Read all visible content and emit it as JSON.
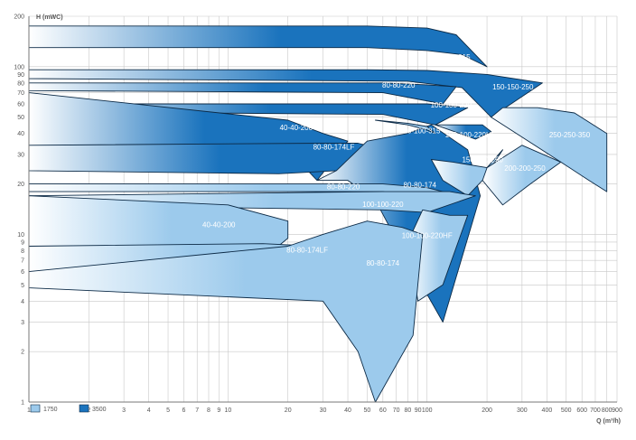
{
  "chart_data": {
    "type": "area",
    "xlabel": "Q (m³/h)",
    "ylabel": "H (mWC)",
    "xscale": "log",
    "yscale": "log",
    "xlim": [
      1,
      900
    ],
    "ylim": [
      1,
      200
    ],
    "grid": true,
    "legend_position": "bottom-left",
    "x_ticks": [
      1,
      2,
      3,
      4,
      5,
      6,
      7,
      8,
      9,
      10,
      20,
      30,
      40,
      50,
      60,
      70,
      80,
      90,
      100,
      200,
      300,
      400,
      500,
      600,
      700,
      800,
      900
    ],
    "y_ticks": [
      1,
      2,
      3,
      4,
      5,
      6,
      7,
      8,
      9,
      10,
      20,
      30,
      40,
      50,
      60,
      70,
      80,
      90,
      100,
      200
    ],
    "series": [
      {
        "name": "1750",
        "color": "#9ccaec"
      },
      {
        "name": "3500",
        "color": "#1a73bd"
      }
    ],
    "regions": [
      {
        "label": "100-100-315",
        "speed": "3500",
        "points": [
          [
            1,
            175
          ],
          [
            1,
            130
          ],
          [
            50,
            130
          ],
          [
            100,
            125
          ],
          [
            150,
            118
          ],
          [
            200,
            100
          ],
          [
            140,
            155
          ],
          [
            100,
            170
          ],
          [
            50,
            175
          ]
        ],
        "label_at": [
          130,
          110
        ]
      },
      {
        "label": "150-150-250",
        "speed": "3500",
        "points": [
          [
            1,
            96
          ],
          [
            1,
            85
          ],
          [
            80,
            82
          ],
          [
            150,
            75
          ],
          [
            210,
            50
          ],
          [
            380,
            80
          ],
          [
            200,
            90
          ],
          [
            100,
            95
          ],
          [
            50,
            96
          ]
        ],
        "label_at": [
          270,
          73
        ]
      },
      {
        "label": "80-80-220",
        "speed": "3500",
        "points": [
          [
            1,
            80
          ],
          [
            1,
            72
          ],
          [
            60,
            70
          ],
          [
            120,
            60
          ],
          [
            140,
            76
          ],
          [
            100,
            78
          ],
          [
            60,
            80
          ]
        ],
        "label_at": [
          72,
          75
        ]
      },
      {
        "label": "100-100-220",
        "speed": "3500",
        "points": [
          [
            1,
            60
          ],
          [
            1,
            54
          ],
          [
            60,
            52
          ],
          [
            110,
            45
          ],
          [
            160,
            57
          ],
          [
            100,
            60
          ]
        ],
        "label_at": [
          132,
          57
        ]
      },
      {
        "label": "100-100-220HF",
        "speed": "3500",
        "points": [
          [
            110,
            45
          ],
          [
            130,
            42
          ],
          [
            175,
            37
          ],
          [
            210,
            41
          ],
          [
            190,
            45
          ]
        ],
        "label_at": [
          165,
          38
        ]
      },
      {
        "label": "40-40-200",
        "speed": "3500",
        "points": [
          [
            1,
            70
          ],
          [
            1,
            34
          ],
          [
            20,
            32
          ],
          [
            28,
            21
          ],
          [
            40,
            36
          ],
          [
            30,
            40
          ],
          [
            20,
            48
          ]
        ],
        "label_at": [
          22,
          42
        ]
      },
      {
        "label": "80-80-174LF",
        "speed": "3500",
        "points": [
          [
            1,
            34
          ],
          [
            1,
            24
          ],
          [
            18,
            23
          ],
          [
            35,
            24
          ],
          [
            55,
            33
          ],
          [
            45,
            35
          ],
          [
            30,
            35
          ]
        ],
        "label_at": [
          34,
          32
        ]
      },
      {
        "label": "80-80-174",
        "speed": "3500",
        "points": [
          [
            28,
            21
          ],
          [
            35,
            24
          ],
          [
            50,
            36
          ],
          [
            80,
            40
          ],
          [
            105,
            45
          ],
          [
            160,
            32
          ],
          [
            185,
            17
          ],
          [
            120,
            3
          ],
          [
            75,
            8
          ],
          [
            55,
            16
          ],
          [
            40,
            21
          ]
        ],
        "label_at": [
          92,
          19
        ]
      },
      {
        "label": "100-100-315",
        "speed": "1750",
        "points": [
          [
            55,
            48
          ],
          [
            80,
            45
          ],
          [
            100,
            42
          ],
          [
            110,
            40
          ],
          [
            100,
            44
          ],
          [
            80,
            46
          ]
        ],
        "label_at": [
          92,
          40
        ]
      },
      {
        "label": "250-250-350",
        "speed": "1750",
        "points": [
          [
            210,
            50
          ],
          [
            240,
            57
          ],
          [
            360,
            57
          ],
          [
            550,
            53
          ],
          [
            800,
            40
          ],
          [
            800,
            18
          ],
          [
            650,
            21
          ],
          [
            470,
            27
          ]
        ],
        "label_at": [
          520,
          38
        ]
      },
      {
        "label": "150-150-250",
        "speed": "1750",
        "points": [
          [
            105,
            28
          ],
          [
            135,
            27
          ],
          [
            200,
            25
          ],
          [
            240,
            32
          ],
          [
            190,
            21
          ],
          [
            160,
            17
          ],
          [
            120,
            21
          ]
        ],
        "label_at": [
          190,
          27
        ]
      },
      {
        "label": "200-200-250",
        "speed": "1750",
        "points": [
          [
            200,
            25
          ],
          [
            300,
            34
          ],
          [
            470,
            27
          ],
          [
            330,
            20
          ],
          [
            240,
            15
          ],
          [
            190,
            21
          ]
        ],
        "label_at": [
          310,
          24
        ]
      },
      {
        "label": "80-80-220",
        "speed": "1750",
        "points": [
          [
            1,
            20
          ],
          [
            1,
            18
          ],
          [
            60,
            18
          ],
          [
            100,
            16
          ],
          [
            145,
            17
          ],
          [
            100,
            19
          ],
          [
            60,
            20
          ]
        ],
        "label_at": [
          38,
          18.6
        ]
      },
      {
        "label": "100-100-220",
        "speed": "1750",
        "points": [
          [
            1,
            17
          ],
          [
            1,
            15
          ],
          [
            60,
            14
          ],
          [
            100,
            13.5
          ],
          [
            175,
            17
          ],
          [
            130,
            18
          ],
          [
            60,
            18
          ]
        ],
        "label_at": [
          60,
          14.6
        ]
      },
      {
        "label": "40-40-200",
        "speed": "1750",
        "points": [
          [
            1,
            17
          ],
          [
            1,
            8.5
          ],
          [
            10,
            8.5
          ],
          [
            10,
            4.8
          ],
          [
            20,
            9.5
          ],
          [
            20,
            12
          ],
          [
            10,
            15
          ]
        ],
        "label_at": [
          9,
          11
        ]
      },
      {
        "label": "80-80-174LF",
        "speed": "1750",
        "points": [
          [
            1,
            8.5
          ],
          [
            1,
            6
          ],
          [
            10,
            6
          ],
          [
            20,
            4.6
          ],
          [
            30,
            7.5
          ],
          [
            28,
            8.5
          ],
          [
            15,
            8.8
          ]
        ],
        "label_at": [
          25,
          7.8
        ]
      },
      {
        "label": "100-100-220HF",
        "speed": "1750",
        "points": [
          [
            95,
            14
          ],
          [
            130,
            13
          ],
          [
            160,
            13
          ],
          [
            120,
            5
          ],
          [
            90,
            4
          ],
          [
            85,
            6
          ],
          [
            80,
            9
          ]
        ],
        "label_at": [
          100,
          9.5
        ]
      },
      {
        "label": "80-80-174",
        "speed": "1750",
        "points": [
          [
            1,
            4.8
          ],
          [
            1,
            6
          ],
          [
            20,
            8.5
          ],
          [
            30,
            10
          ],
          [
            50,
            12
          ],
          [
            75,
            11
          ],
          [
            95,
            10
          ],
          [
            85,
            2.5
          ],
          [
            55,
            1
          ],
          [
            45,
            2
          ],
          [
            30,
            4
          ]
        ],
        "label_at": [
          60,
          6.5
        ]
      }
    ]
  }
}
